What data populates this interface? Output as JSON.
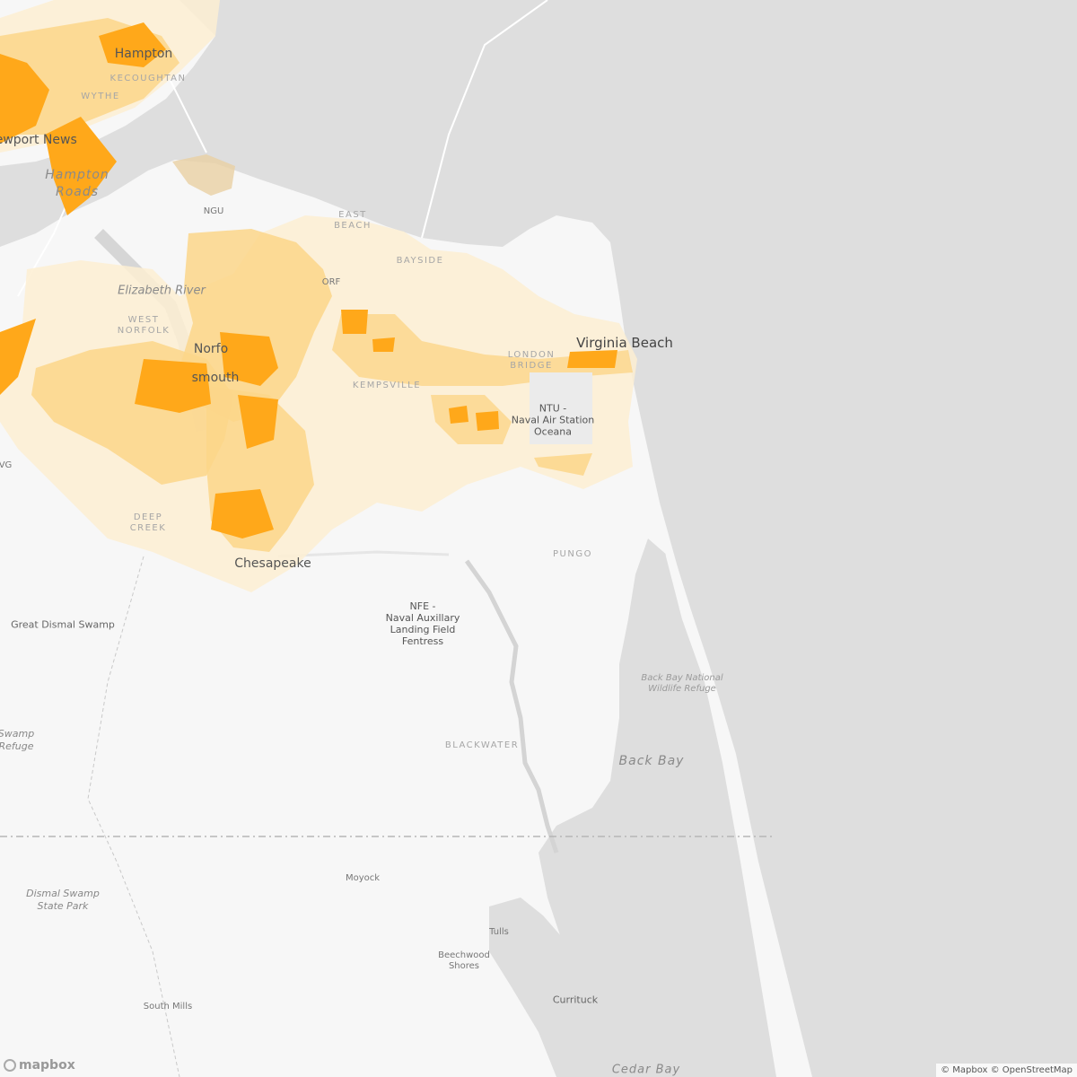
{
  "map": {
    "colors": {
      "land": "#f7f7f7",
      "water": "#dedede",
      "density_low": "#fdefd2",
      "density_mid": "#fbd68a",
      "density_high": "#ffa81a",
      "density_tan": "#e8cfa3"
    },
    "labels": {
      "hampton": "Hampton",
      "kecoughtan": "KECOUGHTAN",
      "wythe": "WYTHE",
      "newport_news": "Newport News",
      "hampton_roads": "Hampton\nRoads",
      "ngu": "NGU",
      "east_beach": "EAST\nBEACH",
      "bayside": "BAYSIDE",
      "orf": "ORF",
      "elizabeth_river": "Elizabeth River",
      "west_norfolk": "WEST\nNORFOLK",
      "norfolk": "Norfo",
      "portsmouth": "smouth",
      "virginia_beach": "Virginia Beach",
      "london_bridge": "LONDON\nBRIDGE",
      "kempsville": "KEMPSVILLE",
      "ntu": "NTU -\nNaval Air Station\nOceana",
      "vg": "VG",
      "deep_creek": "DEEP\nCREEK",
      "chesapeake": "Chesapeake",
      "pungo": "PUNGO",
      "nfe": "NFE -\nNaval Auxillary\nLanding Field\nFentress",
      "great_dismal_swamp": "Great Dismal Swamp",
      "back_bay_refuge": "Back Bay National\nWildlife Refuge",
      "swamp_refuge": "Swamp\nRefuge",
      "blackwater": "BLACKWATER",
      "back_bay": "Back Bay",
      "dismal_swamp_state_park": "Dismal Swamp\nState Park",
      "moyock": "Moyock",
      "tulls": "Tulls",
      "beechwood_shores": "Beechwood\nShores",
      "currituck": "Currituck",
      "south_mills": "South Mills",
      "cedar_bay": "Cedar Bay"
    },
    "logo": "mapbox",
    "attribution": "© Mapbox © OpenStreetMap"
  }
}
